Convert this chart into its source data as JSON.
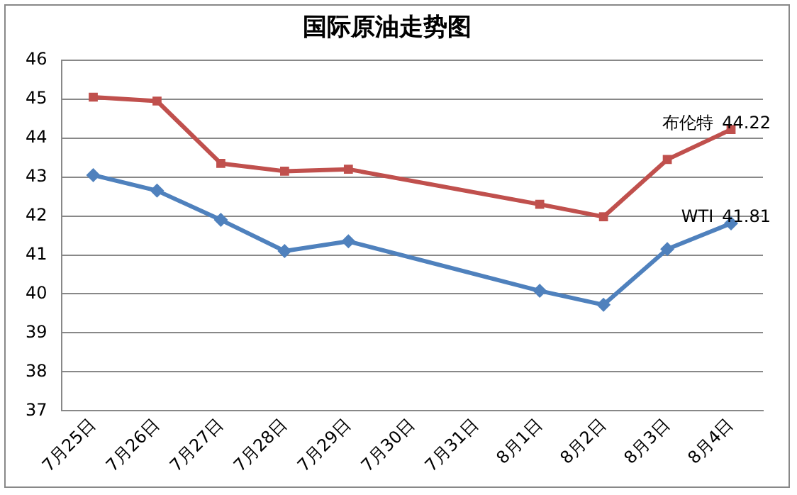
{
  "chart_data": {
    "type": "line",
    "title": "国际原油走势图",
    "categories": [
      "7月25日",
      "7月26日",
      "7月27日",
      "7月28日",
      "7月29日",
      "7月30日",
      "7月31日",
      "8月1日",
      "8月2日",
      "8月3日",
      "8月4日"
    ],
    "series": [
      {
        "name": "布伦特",
        "color": "#c0504d",
        "marker": "square",
        "values": [
          45.05,
          44.95,
          43.35,
          43.15,
          43.2,
          null,
          null,
          42.3,
          41.98,
          43.45,
          44.22
        ],
        "value_labels": [
          null,
          null,
          null,
          null,
          null,
          null,
          null,
          null,
          null,
          null,
          "44.22"
        ]
      },
      {
        "name": "WTI",
        "color": "#4f81bd",
        "marker": "diamond",
        "values": [
          43.05,
          42.65,
          41.9,
          41.1,
          41.35,
          null,
          null,
          40.08,
          39.72,
          41.15,
          41.81
        ],
        "value_labels": [
          null,
          null,
          null,
          null,
          null,
          null,
          null,
          null,
          null,
          null,
          "41.81"
        ]
      }
    ],
    "ylim": [
      37,
      46
    ],
    "yticks": [
      37,
      38,
      39,
      40,
      41,
      42,
      43,
      44,
      45,
      46
    ],
    "grid": "y",
    "legend": false,
    "line_style": "solid"
  }
}
